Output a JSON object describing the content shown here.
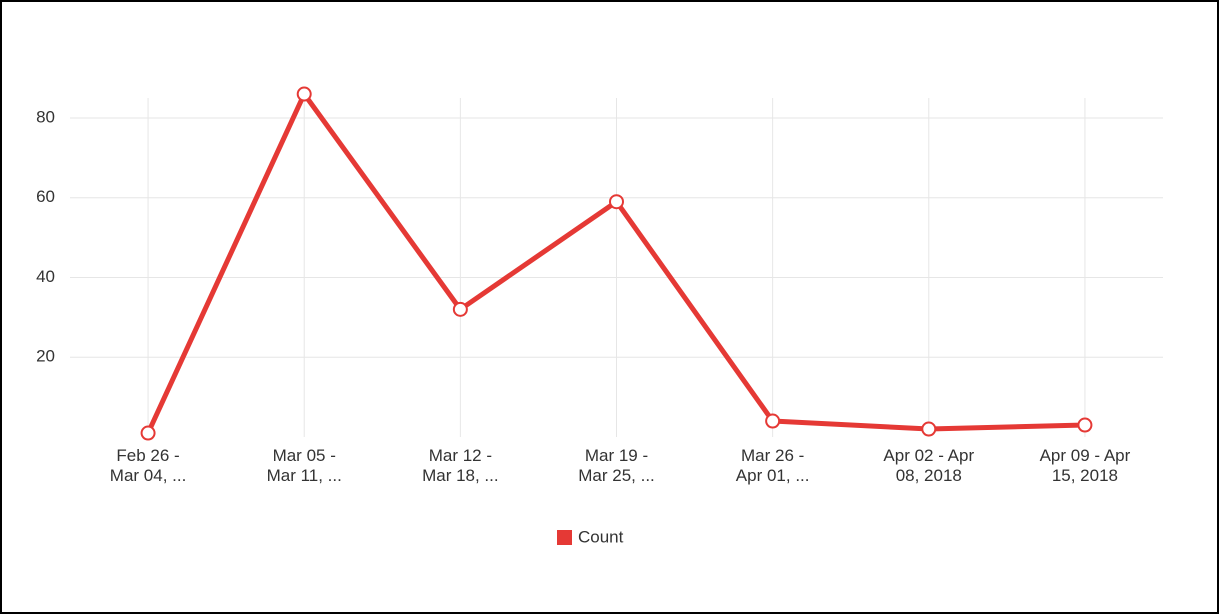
{
  "chart_data": {
    "type": "line",
    "categories": [
      [
        "Feb 26 -",
        "Mar 04, ..."
      ],
      [
        "Mar 05 -",
        "Mar 11, ..."
      ],
      [
        "Mar 12 -",
        "Mar 18, ..."
      ],
      [
        "Mar 19 -",
        "Mar 25, ..."
      ],
      [
        "Mar 26 -",
        "Apr 01, ..."
      ],
      [
        "Apr 02 - Apr",
        "08, 2018"
      ],
      [
        "Apr 09 - Apr",
        "15, 2018"
      ]
    ],
    "series": [
      {
        "name": "Count",
        "color": "#e53935",
        "values": [
          1,
          86,
          32,
          59,
          4,
          2,
          3
        ]
      }
    ],
    "ylim": [
      0,
      85
    ],
    "yticks": [
      20,
      40,
      60,
      80
    ],
    "grid": true,
    "legend": "bottom"
  }
}
